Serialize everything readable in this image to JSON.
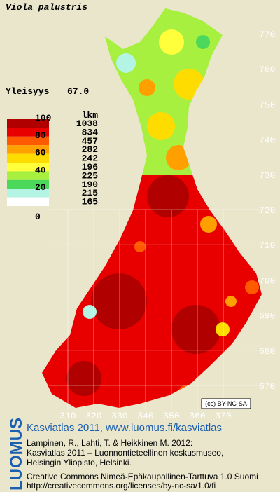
{
  "title": "Viola palustris",
  "frequency": {
    "label": "Yleisyys",
    "value": "67.0"
  },
  "legend": {
    "scale_labels": [
      "100",
      "80",
      "60",
      "40",
      "20",
      "0"
    ],
    "count_header": "lkm",
    "counts": [
      "1038",
      "834",
      "457",
      "282",
      "242",
      "196",
      "225",
      "190",
      "215",
      "165"
    ],
    "colors": [
      "#b00000",
      "#e80000",
      "#ff5a00",
      "#ffa000",
      "#ffdc00",
      "#ffff3c",
      "#a8f040",
      "#4cd85a",
      "#b4f4e4",
      "#ffffff"
    ]
  },
  "grid": {
    "northing_labels": [
      "770",
      "760",
      "750",
      "740",
      "730",
      "720",
      "710",
      "700",
      "690",
      "680",
      "670"
    ],
    "easting_labels": [
      "310",
      "320",
      "330",
      "340",
      "350",
      "360",
      "370"
    ]
  },
  "license_badge": "(cc) BY-NC-SA",
  "footer": {
    "logo": "LUOMUS",
    "headline": "Kasviatlas 2011, www.luomus.fi/kasviatlas",
    "citation": [
      "Lampinen, R., Lahti, T. & Heikkinen M. 2012:",
      "Kasviatlas 2011 – Luonnontieteellinen keskusmuseo,",
      "Helsingin Yliopisto, Helsinki."
    ],
    "license": [
      "Creative Commons Nimeä-Epäkaupallinen-Tarttuva 1.0 Suomi",
      "http://creativecommons.org/licenses/by-nc-sa/1.0/fi"
    ]
  }
}
